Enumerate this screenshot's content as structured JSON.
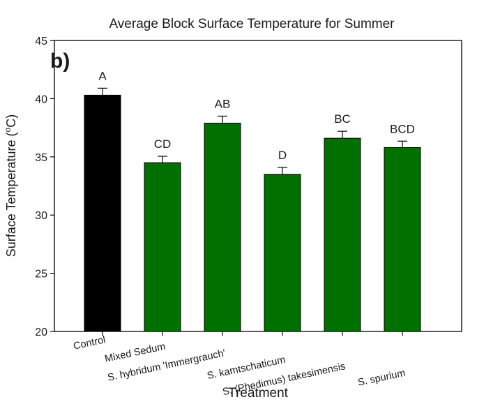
{
  "panel_label": "b)",
  "chart_data": {
    "type": "bar",
    "title": "Average Block Surface Temperature for Summer",
    "xlabel": "Treatment",
    "ylabel": "Surface Temperature (°C)",
    "ylabel_parts": {
      "before": "Surface Temperature (",
      "superscript": "o",
      "after": "C)"
    },
    "ylim": [
      20,
      45
    ],
    "yticks": [
      20,
      25,
      30,
      35,
      40,
      45
    ],
    "grid": false,
    "categories": [
      "Control",
      "Mixed Sedum",
      "S. hybridum 'Immergrauch'",
      "S. kamtschaticum",
      "S. (Phedimus) takesimensis",
      "S. spurium"
    ],
    "values": [
      40.3,
      34.5,
      37.9,
      33.5,
      36.6,
      35.8
    ],
    "errors": [
      0.6,
      0.55,
      0.6,
      0.6,
      0.6,
      0.55
    ],
    "significance_letters": [
      "A",
      "CD",
      "AB",
      "D",
      "BC",
      "BCD"
    ],
    "colors": [
      "#000000",
      "#007000",
      "#007000",
      "#007000",
      "#007000",
      "#007000"
    ]
  }
}
